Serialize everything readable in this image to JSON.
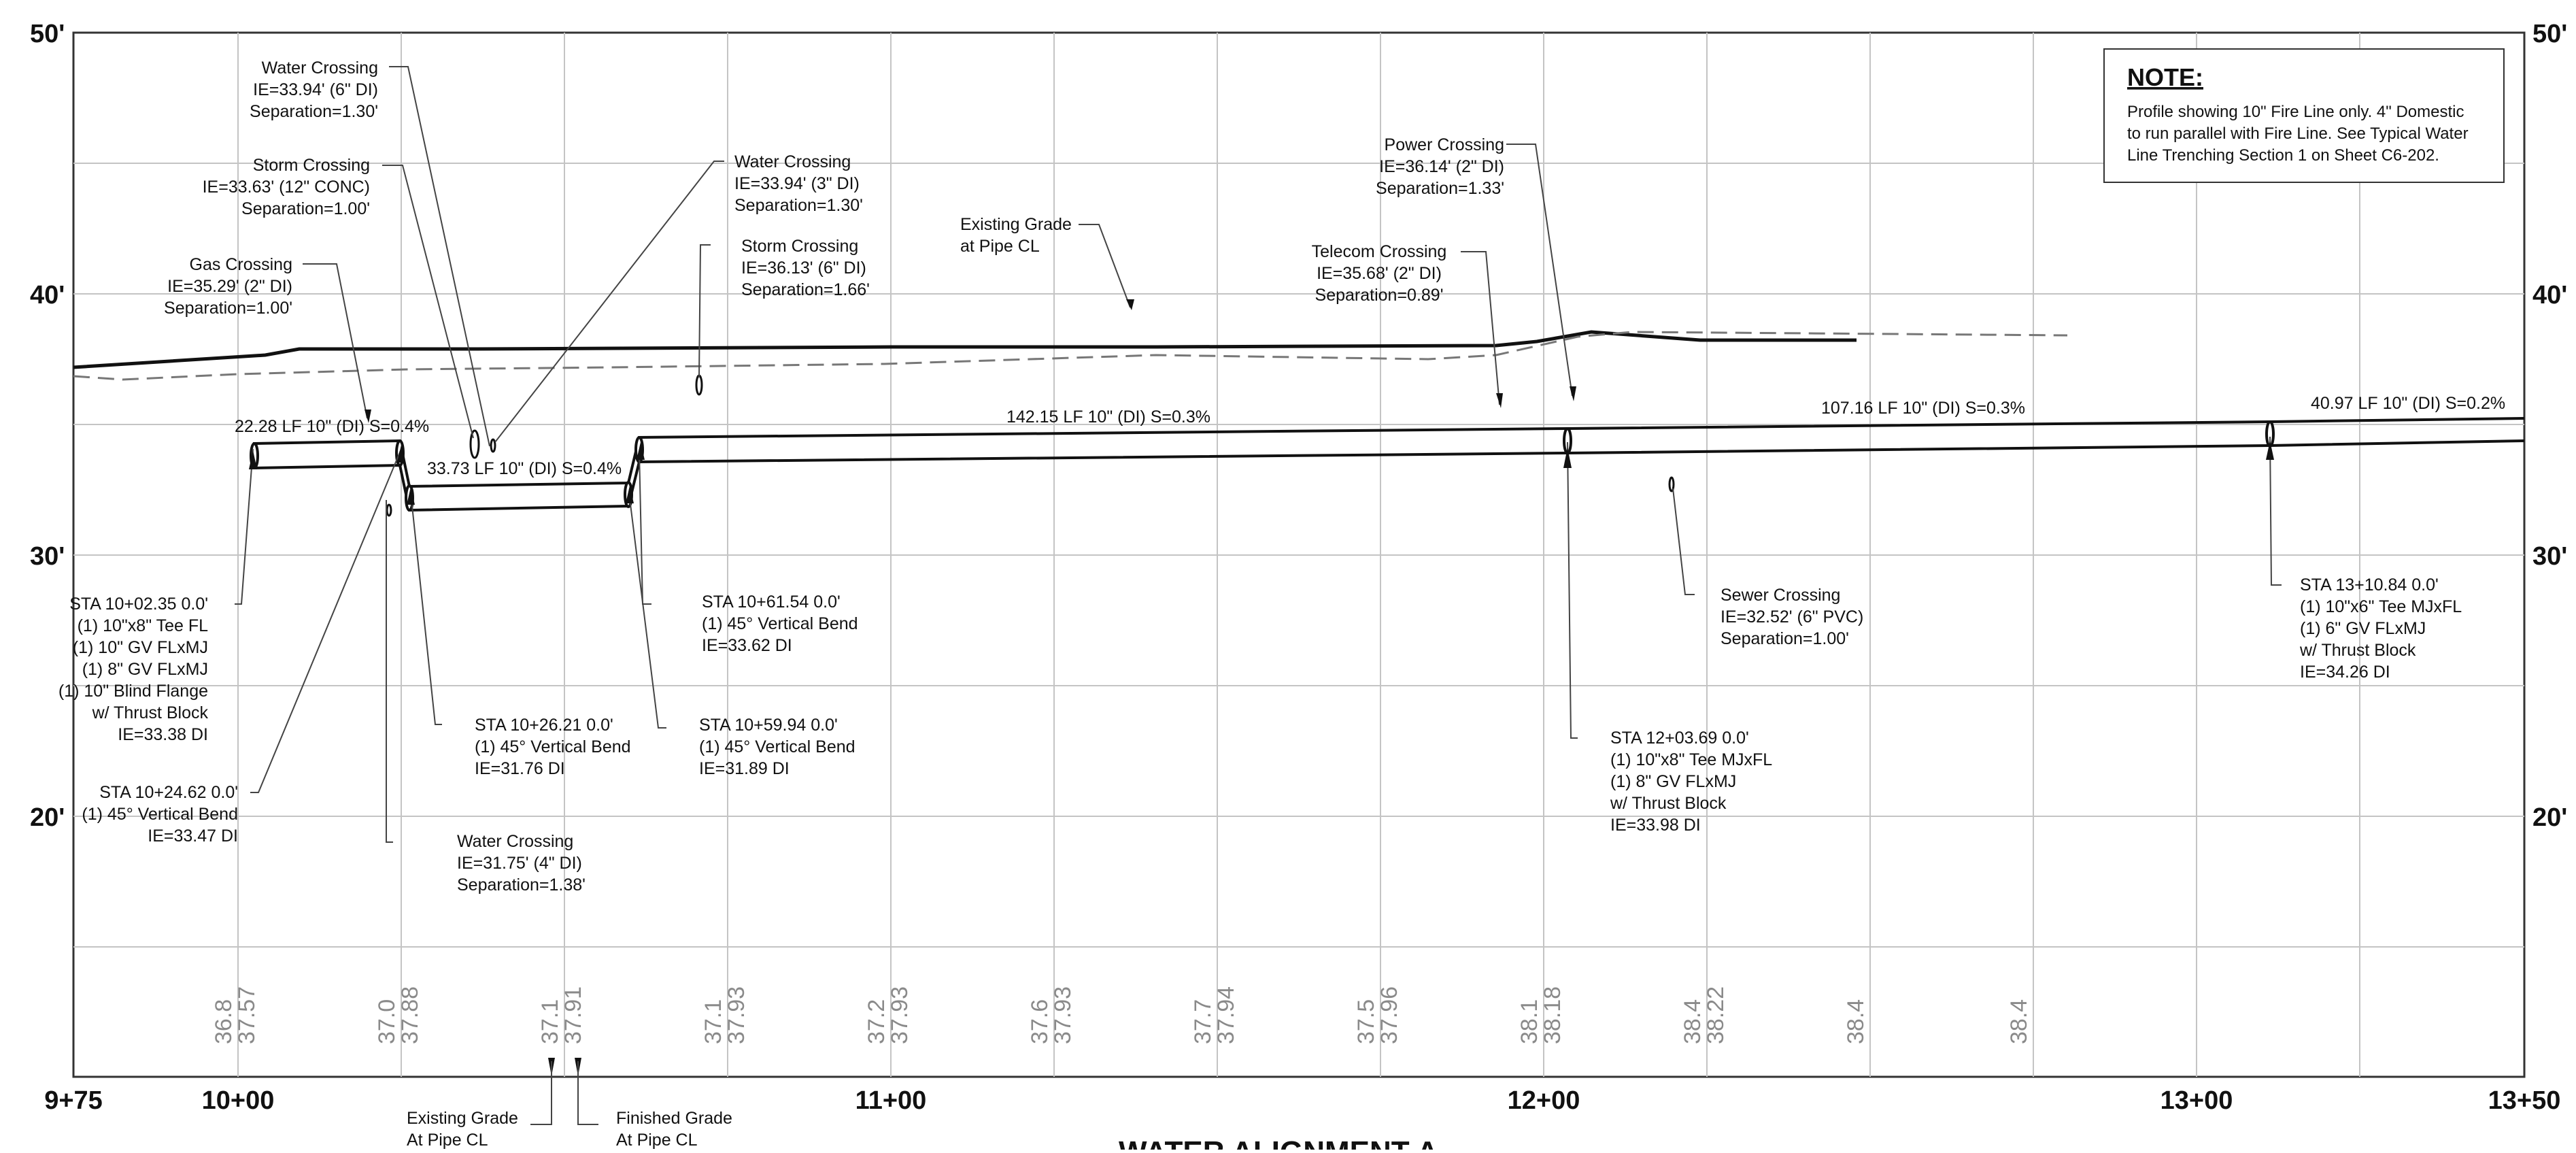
{
  "elevation_axis": [
    "50'",
    "40'",
    "30'",
    "20'"
  ],
  "station_axis": [
    "9+75",
    "10+00",
    "11+00",
    "12+00",
    "13+00",
    "13+50"
  ],
  "note": {
    "title": "NOTE:",
    "lines": [
      "Profile showing 10\" Fire Line only. 4\" Domestic",
      "to run parallel with Fire Line. See Typical Water",
      "Line Trenching Section 1 on Sheet C6-202."
    ]
  },
  "pipe_segments": [
    "22.28 LF 10\" (DI) S=0.4%",
    "33.73 LF 10\" (DI) S=0.4%",
    "142.15 LF 10\" (DI) S=0.3%",
    "107.16 LF 10\" (DI) S=0.3%",
    "40.97 LF 10\" (DI) S=0.2%"
  ],
  "crossings": {
    "water1": [
      "Water Crossing",
      "IE=33.94' (6\" DI)",
      "Separation=1.30'"
    ],
    "storm1": [
      "Storm Crossing",
      "IE=33.63' (12\" CONC)",
      "Separation=1.00'"
    ],
    "gas": [
      "Gas Crossing",
      "IE=35.29' (2\" DI)",
      "Separation=1.00'"
    ],
    "water2": [
      "Water Crossing",
      "IE=33.94' (3\" DI)",
      "Separation=1.30'"
    ],
    "storm2": [
      "Storm Crossing",
      "IE=36.13' (6\" DI)",
      "Separation=1.66'"
    ],
    "existing_grade": [
      "Existing Grade",
      "at Pipe CL"
    ],
    "telecom": [
      "Telecom Crossing",
      "IE=35.68' (2\" DI)",
      "Separation=0.89'"
    ],
    "power": [
      "Power Crossing",
      "IE=36.14' (2\" DI)",
      "Separation=1.33'"
    ],
    "sewer": [
      "Sewer Crossing",
      "IE=32.52' (6\" PVC)",
      "Separation=1.00'"
    ],
    "water3": [
      "Water Crossing",
      "IE=31.75' (4\" DI)",
      "Separation=1.38'"
    ]
  },
  "fittings": {
    "sta1": [
      "STA 10+02.35 0.0'",
      "(1) 10\"x8\" Tee FL",
      "(1) 10\" GV FLxMJ",
      "(1) 8\" GV FLxMJ",
      "(1) 10\" Blind Flange",
      "w/ Thrust Block",
      "IE=33.38 DI"
    ],
    "sta2": [
      "STA 10+24.62 0.0'",
      "(1) 45° Vertical Bend",
      "IE=33.47 DI"
    ],
    "sta3": [
      "STA 10+26.21 0.0'",
      "(1) 45° Vertical Bend",
      "IE=31.76 DI"
    ],
    "sta4": [
      "STA 10+61.54 0.0'",
      "(1) 45° Vertical Bend",
      "IE=33.62 DI"
    ],
    "sta5": [
      "STA 10+59.94 0.0'",
      "(1) 45° Vertical Bend",
      "IE=31.89 DI"
    ],
    "sta6": [
      "STA 12+03.69 0.0'",
      "(1) 10\"x8\" Tee MJxFL",
      "(1) 8\" GV FLxMJ",
      "w/ Thrust Block",
      "IE=33.98 DI"
    ],
    "sta7": [
      "STA 13+10.84 0.0'",
      "(1) 10\"x6\" Tee MJxFL",
      "(1) 6\" GV FLxMJ",
      "w/ Thrust Block",
      "IE=34.26 DI"
    ]
  },
  "grade_columns": [
    {
      "existing": "36.8",
      "finished": "37.57"
    },
    {
      "existing": "37.0",
      "finished": "37.88"
    },
    {
      "existing": "37.1",
      "finished": "37.91"
    },
    {
      "existing": "37.1",
      "finished": "37.93"
    },
    {
      "existing": "37.2",
      "finished": "37.93"
    },
    {
      "existing": "37.6",
      "finished": "37.93"
    },
    {
      "existing": "37.7",
      "finished": "37.94"
    },
    {
      "existing": "37.5",
      "finished": "37.96"
    },
    {
      "existing": "38.1",
      "finished": "38.18"
    },
    {
      "existing": "38.4",
      "finished": "38.22"
    },
    {
      "existing": "38.4",
      "finished": ""
    },
    {
      "existing": "38.4",
      "finished": ""
    }
  ],
  "bottom_labels": {
    "existing": [
      "Existing Grade",
      "At Pipe CL"
    ],
    "finished": [
      "Finished Grade",
      "At Pipe CL"
    ]
  },
  "title": "WATER ALIGNMENT A"
}
